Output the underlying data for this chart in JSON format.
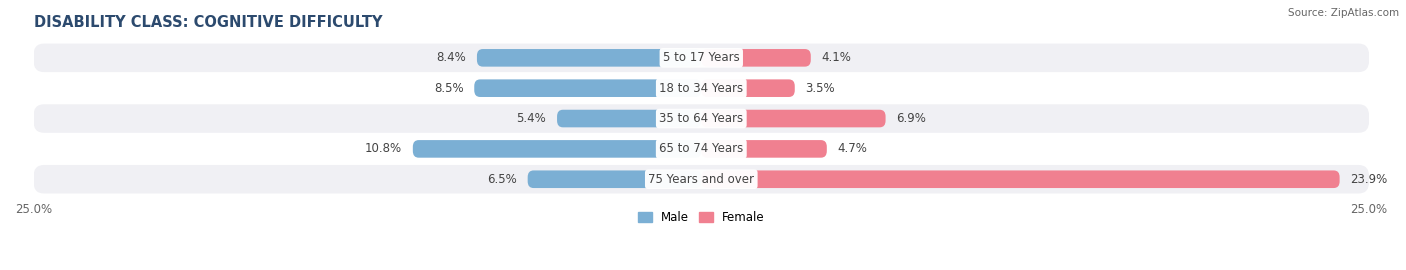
{
  "title": "DISABILITY CLASS: COGNITIVE DIFFICULTY",
  "source": "Source: ZipAtlas.com",
  "categories": [
    "5 to 17 Years",
    "18 to 34 Years",
    "35 to 64 Years",
    "65 to 74 Years",
    "75 Years and over"
  ],
  "male_values": [
    8.4,
    8.5,
    5.4,
    10.8,
    6.5
  ],
  "female_values": [
    4.1,
    3.5,
    6.9,
    4.7,
    23.9
  ],
  "max_val": 25.0,
  "male_color": "#7bafd4",
  "female_color": "#f08090",
  "row_bg_colors": [
    "#f0f0f4",
    "#ffffff",
    "#f0f0f4",
    "#ffffff",
    "#f0f0f4"
  ],
  "label_color": "#444444",
  "title_fontsize": 10.5,
  "label_fontsize": 8.5,
  "tick_fontsize": 8.5,
  "background_color": "#ffffff"
}
